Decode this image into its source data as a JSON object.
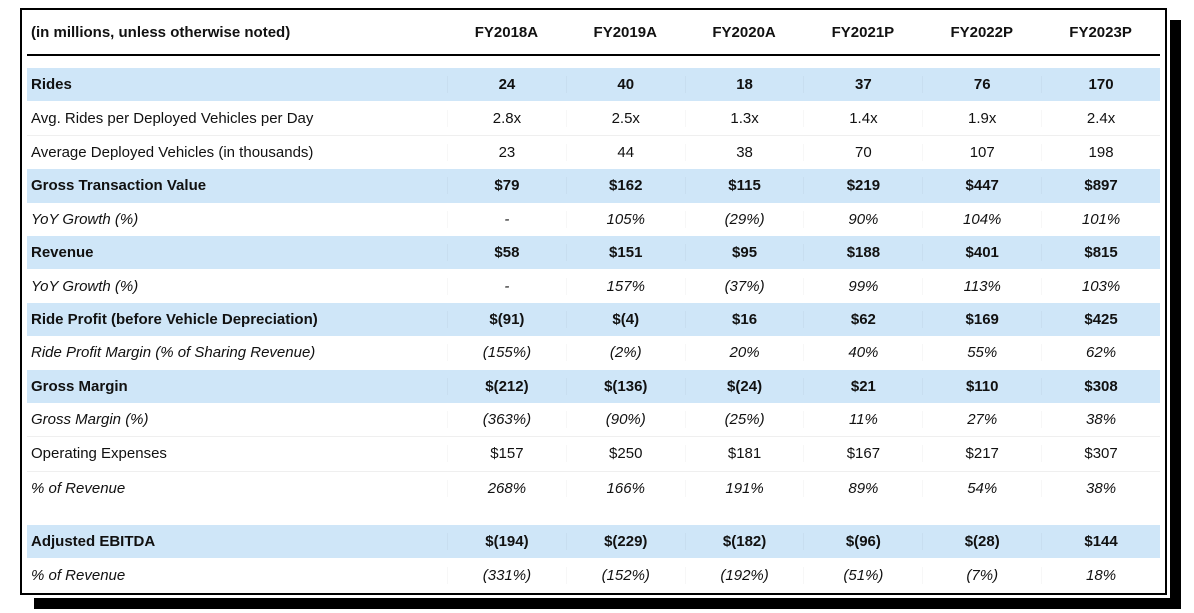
{
  "table": {
    "corner_label": "(in millions, unless otherwise noted)",
    "columns": [
      "FY2018A",
      "FY2019A",
      "FY2020A",
      "FY2021P",
      "FY2022P",
      "FY2023P"
    ],
    "colors": {
      "highlight": "#cfe6f8",
      "border": "#000000"
    },
    "rows": [
      {
        "label": "Rides",
        "style": "highlight",
        "values": [
          "24",
          "40",
          "18",
          "37",
          "76",
          "170"
        ]
      },
      {
        "label": "Avg. Rides per Deployed Vehicles per Day",
        "style": "plain",
        "values": [
          "2.8x",
          "2.5x",
          "1.3x",
          "1.4x",
          "1.9x",
          "2.4x"
        ]
      },
      {
        "label": "Average Deployed Vehicles (in thousands)",
        "style": "plain",
        "values": [
          "23",
          "44",
          "38",
          "70",
          "107",
          "198"
        ]
      },
      {
        "label": "Gross Transaction Value",
        "style": "highlight",
        "values": [
          "$79",
          "$162",
          "$115",
          "$219",
          "$447",
          "$897"
        ]
      },
      {
        "label": "YoY Growth (%)",
        "style": "italic",
        "values": [
          "-",
          "105%",
          "(29%)",
          "90%",
          "104%",
          "101%"
        ]
      },
      {
        "label": "Revenue",
        "style": "highlight",
        "values": [
          "$58",
          "$151",
          "$95",
          "$188",
          "$401",
          "$815"
        ]
      },
      {
        "label": "YoY Growth (%)",
        "style": "italic",
        "values": [
          "-",
          "157%",
          "(37%)",
          "99%",
          "113%",
          "103%"
        ]
      },
      {
        "label": "Ride Profit (before Vehicle Depreciation)",
        "style": "highlight",
        "values": [
          "$(91)",
          "$(4)",
          "$16",
          "$62",
          "$169",
          "$425"
        ]
      },
      {
        "label": "Ride Profit Margin (% of Sharing Revenue)",
        "style": "italic",
        "values": [
          "(155%)",
          "(2%)",
          "20%",
          "40%",
          "55%",
          "62%"
        ]
      },
      {
        "label": "Gross Margin",
        "style": "highlight",
        "values": [
          "$(212)",
          "$(136)",
          "$(24)",
          "$21",
          "$110",
          "$308"
        ]
      },
      {
        "label": "Gross Margin (%)",
        "style": "italic",
        "values": [
          "(363%)",
          "(90%)",
          "(25%)",
          "11%",
          "27%",
          "38%"
        ]
      },
      {
        "label": "Operating Expenses",
        "style": "plain",
        "values": [
          "$157",
          "$250",
          "$181",
          "$167",
          "$217",
          "$307"
        ]
      },
      {
        "label": "% of Revenue",
        "style": "italic",
        "values": [
          "268%",
          "166%",
          "191%",
          "89%",
          "54%",
          "38%"
        ]
      },
      {
        "label": "",
        "style": "spacer",
        "values": []
      },
      {
        "label": "Adjusted EBITDA",
        "style": "highlight",
        "values": [
          "$(194)",
          "$(229)",
          "$(182)",
          "$(96)",
          "$(28)",
          "$144"
        ]
      },
      {
        "label": "% of Revenue",
        "style": "italic",
        "values": [
          "(331%)",
          "(152%)",
          "(192%)",
          "(51%)",
          "(7%)",
          "18%"
        ]
      }
    ]
  }
}
